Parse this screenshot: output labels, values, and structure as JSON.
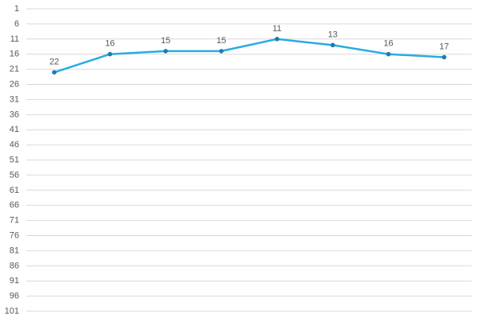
{
  "chart_data": {
    "type": "line",
    "categories": [
      "",
      "",
      "",
      "",
      "",
      "",
      "",
      ""
    ],
    "series": [
      {
        "values": [
          22,
          16,
          15,
          15,
          11,
          13,
          16,
          17
        ]
      }
    ],
    "title": "",
    "xlabel": "",
    "ylabel": "",
    "ylim": [
      1,
      101
    ],
    "y_axis_reversed": true,
    "yticks": [
      1,
      6,
      11,
      16,
      21,
      26,
      31,
      36,
      41,
      46,
      51,
      56,
      61,
      66,
      71,
      76,
      81,
      86,
      91,
      96,
      101
    ],
    "grid": true,
    "legend": "none",
    "data_labels": true,
    "colors": {
      "line": "#29ABE2",
      "marker": "#1F7BB0",
      "grid": "#d9d9d9",
      "text": "#595959"
    }
  }
}
